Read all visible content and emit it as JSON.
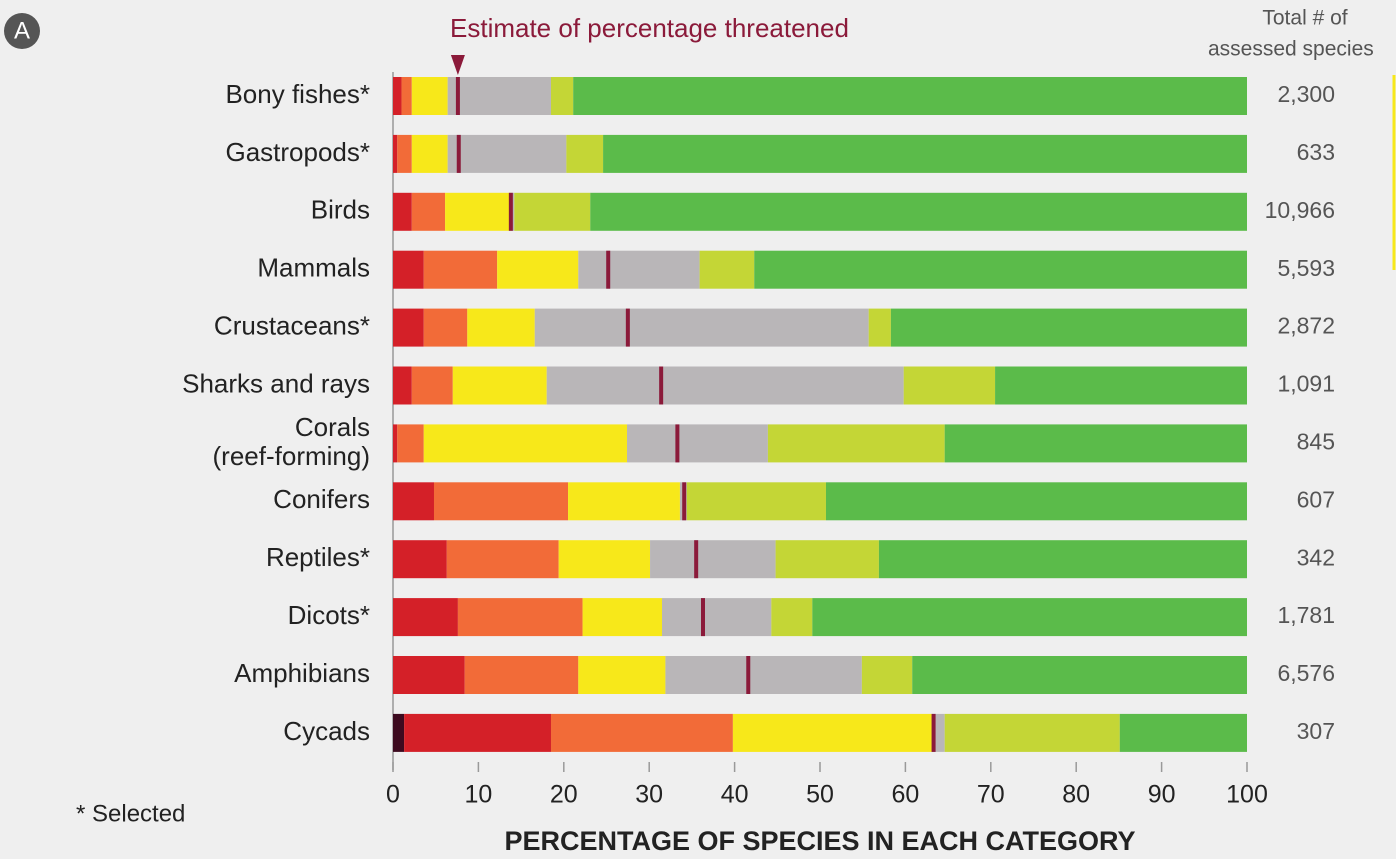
{
  "panel_label": "A",
  "chart_data": {
    "type": "bar",
    "orientation": "horizontal",
    "stacked": true,
    "annotation": "Estimate of percentage threatened",
    "totals_header": [
      "Total # of",
      "assessed species"
    ],
    "footnote": "* Selected",
    "xlabel": "PERCENTAGE  OF SPECIES IN EACH CATEGORY",
    "categories": [
      "Bony fishes*",
      "Gastropods*",
      "Birds",
      "Mammals",
      "Crustaceans*",
      "Sharks and rays",
      "Corals\n(reef-forming)",
      "Conifers",
      "Reptiles*",
      "Dicots*",
      "Amphibians",
      "Cycads"
    ],
    "series": [
      {
        "color": "#3d0a1f",
        "values": [
          0,
          0,
          0,
          0,
          0,
          0,
          0,
          0,
          0,
          0,
          0,
          1.3
        ]
      },
      {
        "color": "#d42028",
        "values": [
          1.0,
          0.5,
          2.2,
          3.6,
          3.6,
          2.2,
          0.5,
          4.8,
          6.3,
          7.6,
          8.4,
          17.2
        ]
      },
      {
        "color": "#f26b38",
        "values": [
          1.2,
          1.7,
          3.9,
          8.6,
          5.1,
          4.8,
          3.1,
          15.7,
          13.1,
          14.6,
          13.3,
          21.3
        ]
      },
      {
        "color": "#f7e81a",
        "values": [
          4.2,
          4.2,
          7.7,
          9.5,
          7.9,
          11.0,
          23.8,
          13.1,
          10.7,
          9.3,
          10.2,
          23.3
        ]
      },
      {
        "color": "#b9b6b8",
        "values": [
          12.1,
          13.9,
          0.4,
          14.2,
          39.1,
          41.8,
          16.5,
          0.8,
          14.7,
          12.8,
          23.0,
          1.5
        ]
      },
      {
        "color": "#c4d636",
        "values": [
          2.6,
          4.3,
          8.9,
          6.4,
          2.6,
          10.7,
          20.7,
          16.3,
          12.1,
          4.8,
          5.9,
          20.5
        ]
      },
      {
        "color": "#5bbb4a",
        "values": [
          78.9,
          75.4,
          76.9,
          57.7,
          41.7,
          29.5,
          35.4,
          49.3,
          43.1,
          50.9,
          39.2,
          14.9
        ]
      }
    ],
    "estimate": {
      "color": "#8b1a3a",
      "values": [
        7.6,
        7.7,
        13.8,
        25.2,
        27.5,
        31.4,
        33.3,
        34.1,
        35.5,
        36.3,
        41.6,
        63.3
      ]
    },
    "totals": {
      "values": [
        2300,
        633,
        10966,
        5593,
        2872,
        1091,
        845,
        607,
        342,
        1781,
        6576,
        307
      ],
      "value_labels": [
        "2,300",
        "633",
        "10,966",
        "5,593",
        "2,872",
        "1,091",
        "845",
        "607",
        "342",
        "1,781",
        "6,576",
        "307"
      ]
    },
    "xlim": [
      0,
      100
    ],
    "xticks": [
      0,
      10,
      20,
      30,
      40,
      50,
      60,
      70,
      80,
      90,
      100
    ]
  }
}
